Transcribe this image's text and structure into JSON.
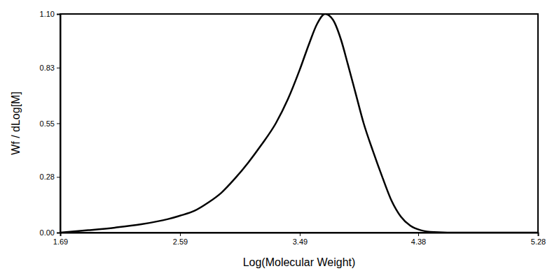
{
  "chart_data": {
    "type": "line",
    "x_label": "Log(Molecular Weight)",
    "y_label": "Wf / dLog[M]",
    "color": "#000000",
    "x": [
      1.69,
      1.9,
      2.1,
      2.3,
      2.5,
      2.59,
      2.7,
      2.8,
      2.9,
      3.0,
      3.1,
      3.2,
      3.31,
      3.4,
      3.49,
      3.56,
      3.62,
      3.68,
      3.74,
      3.8,
      3.85,
      3.91,
      3.97,
      4.04,
      4.11,
      4.18,
      4.25,
      4.32,
      4.4,
      4.5,
      4.7,
      5.0,
      5.28
    ],
    "values": [
      0,
      0.012,
      0.025,
      0.042,
      0.068,
      0.085,
      0.11,
      0.15,
      0.2,
      0.27,
      0.35,
      0.44,
      0.55,
      0.67,
      0.82,
      0.95,
      1.05,
      1.1,
      1.07,
      0.97,
      0.85,
      0.7,
      0.55,
      0.41,
      0.28,
      0.16,
      0.08,
      0.035,
      0.012,
      0.003,
      0,
      0,
      0
    ],
    "xlim": [
      1.69,
      5.28
    ],
    "ylim": [
      0,
      1.1
    ],
    "xticks": [
      1.69,
      2.59,
      3.49,
      4.38,
      5.28
    ],
    "yticks": [
      {
        "value": 0,
        "label": "0.00"
      },
      {
        "value": 0.28,
        "label": "0.28"
      },
      {
        "value": 0.55,
        "label": "0.55"
      },
      {
        "value": 0.83,
        "label": "0.83"
      },
      {
        "value": 1.1,
        "label": "1.10"
      }
    ],
    "grid": false
  }
}
